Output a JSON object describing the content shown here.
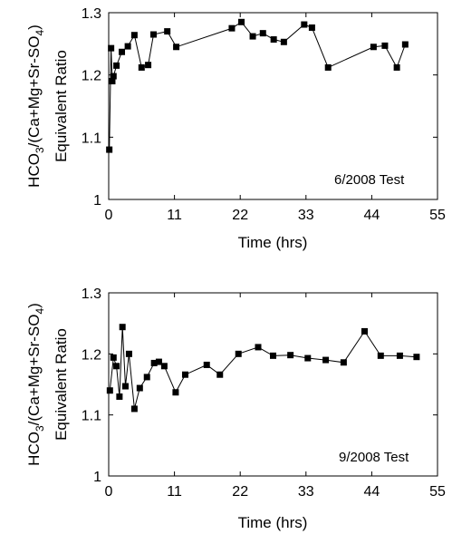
{
  "chart_data": [
    {
      "type": "line",
      "xlabel": "Time (hrs)",
      "ylabel_top": "HCO3/(Ca+Mg+Sr-SO4)",
      "ylabel_bottom": "Equivalent Ratio",
      "annotation": "6/2008 Test",
      "xlim": [
        0,
        55
      ],
      "ylim": [
        1.0,
        1.3
      ],
      "xticks": [
        0,
        11,
        22,
        33,
        44,
        55
      ],
      "yticks": [
        1,
        1.1,
        1.2,
        1.3
      ],
      "ytick_labels": [
        "1",
        "1.1",
        "1.2",
        "1.3"
      ],
      "marker": "square",
      "x": [
        0.1,
        0.4,
        0.6,
        0.8,
        1.3,
        2.2,
        3.2,
        4.3,
        5.5,
        6.6,
        7.5,
        9.8,
        11.3,
        20.6,
        22.2,
        24.1,
        25.8,
        27.6,
        29.3,
        32.7,
        34.0,
        36.7,
        44.3,
        46.2,
        48.2,
        49.6
      ],
      "y": [
        1.08,
        1.243,
        1.19,
        1.198,
        1.215,
        1.237,
        1.246,
        1.264,
        1.212,
        1.216,
        1.265,
        1.27,
        1.245,
        1.275,
        1.285,
        1.262,
        1.267,
        1.257,
        1.253,
        1.281,
        1.276,
        1.212,
        1.245,
        1.247,
        1.212,
        1.249
      ]
    },
    {
      "type": "line",
      "xlabel": "Time (hrs)",
      "ylabel_top": "HCO3/(Ca+Mg+Sr-SO4)",
      "ylabel_bottom": "Equivalent Ratio",
      "annotation": "9/2008 Test",
      "xlim": [
        0,
        55
      ],
      "ylim": [
        1.0,
        1.3
      ],
      "xticks": [
        0,
        11,
        22,
        33,
        44,
        55
      ],
      "yticks": [
        1,
        1.1,
        1.2,
        1.3
      ],
      "ytick_labels": [
        "1",
        "1.1",
        "1.2",
        "1.3"
      ],
      "marker": "square",
      "x": [
        0.2,
        0.8,
        1.3,
        1.8,
        2.3,
        2.8,
        3.4,
        4.3,
        5.2,
        6.4,
        7.6,
        8.4,
        9.3,
        11.2,
        12.8,
        16.4,
        18.6,
        21.7,
        25.0,
        27.5,
        30.4,
        33.3,
        36.3,
        39.3,
        42.8,
        45.5,
        48.7,
        51.5
      ],
      "y": [
        1.14,
        1.194,
        1.18,
        1.13,
        1.244,
        1.147,
        1.2,
        1.11,
        1.144,
        1.162,
        1.185,
        1.187,
        1.18,
        1.137,
        1.166,
        1.182,
        1.166,
        1.2,
        1.211,
        1.197,
        1.198,
        1.193,
        1.19,
        1.186,
        1.237,
        1.197,
        1.197,
        1.195
      ]
    }
  ]
}
